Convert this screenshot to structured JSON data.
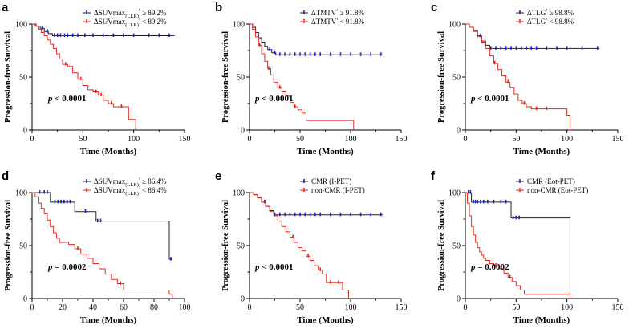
{
  "colors": {
    "blue": "#1f22c8",
    "red": "#e8281e",
    "axis": "#000000"
  },
  "chart_data": [
    {
      "panel": "a",
      "type": "line",
      "xlabel": "Time (Months)",
      "ylabel": "Progression-free Survival",
      "xlim": [
        0,
        150
      ],
      "ylim": [
        0,
        100
      ],
      "xticks": [
        "0",
        "50",
        "100",
        "150"
      ],
      "yticks": [
        "0",
        "50",
        "100"
      ],
      "pvalue": "< 0.0001",
      "legend": [
        "ΔSUVmax(LLR)¹ ≥ 89.2%",
        "ΔSUVmax(LLR)¹ < 89.2%"
      ],
      "series": [
        {
          "name": "ΔSUVmax(LLR)¹ ≥ 89.2%",
          "color": "blue",
          "steps": [
            [
              0,
              100
            ],
            [
              4,
              98
            ],
            [
              8,
              96
            ],
            [
              12,
              93
            ],
            [
              16,
              91
            ],
            [
              20,
              89
            ],
            [
              140,
              89
            ]
          ],
          "censors": [
            10,
            15,
            22,
            25,
            28,
            32,
            35,
            40,
            45,
            52,
            60,
            70,
            80,
            90,
            100,
            115,
            125,
            135
          ]
        },
        {
          "name": "ΔSUVmax(LLR)¹ < 89.2%",
          "color": "red",
          "steps": [
            [
              0,
              100
            ],
            [
              3,
              98
            ],
            [
              6,
              95
            ],
            [
              9,
              92
            ],
            [
              12,
              89
            ],
            [
              15,
              85
            ],
            [
              18,
              81
            ],
            [
              21,
              77
            ],
            [
              24,
              72
            ],
            [
              27,
              67
            ],
            [
              30,
              62
            ],
            [
              35,
              60
            ],
            [
              40,
              54
            ],
            [
              45,
              48
            ],
            [
              50,
              42
            ],
            [
              55,
              38
            ],
            [
              60,
              36
            ],
            [
              65,
              33
            ],
            [
              70,
              28
            ],
            [
              75,
              25
            ],
            [
              80,
              22
            ],
            [
              93,
              22
            ],
            [
              95,
              10
            ],
            [
              102,
              10
            ],
            [
              102,
              0
            ]
          ],
          "censors": [
            33,
            48,
            63,
            68,
            78,
            88
          ]
        }
      ]
    },
    {
      "panel": "b",
      "type": "line",
      "xlabel": "Time (Months)",
      "ylabel": "Progression-free Survival",
      "xlim": [
        0,
        150
      ],
      "ylim": [
        0,
        100
      ],
      "xticks": [
        "0",
        "50",
        "100",
        "150"
      ],
      "yticks": [
        "0",
        "50",
        "100"
      ],
      "pvalue": "< 0.0001",
      "legend": [
        "ΔTMTV¹ ≥ 91.8%",
        "ΔTMTV¹ < 91.8%"
      ],
      "series": [
        {
          "name": "ΔTMTV¹ ≥ 91.8%",
          "color": "blue",
          "steps": [
            [
              0,
              100
            ],
            [
              3,
              97
            ],
            [
              6,
              92
            ],
            [
              9,
              87
            ],
            [
              12,
              83
            ],
            [
              15,
              79
            ],
            [
              18,
              76
            ],
            [
              22,
              73
            ],
            [
              26,
              71
            ],
            [
              132,
              71
            ]
          ],
          "censors": [
            20,
            25,
            30,
            35,
            40,
            45,
            50,
            55,
            60,
            65,
            70,
            80,
            90,
            100,
            110,
            120,
            130
          ]
        },
        {
          "name": "ΔTMTV¹ < 91.8%",
          "color": "red",
          "steps": [
            [
              0,
              100
            ],
            [
              3,
              95
            ],
            [
              6,
              88
            ],
            [
              9,
              80
            ],
            [
              12,
              72
            ],
            [
              15,
              65
            ],
            [
              18,
              58
            ],
            [
              21,
              52
            ],
            [
              24,
              45
            ],
            [
              28,
              40
            ],
            [
              32,
              36
            ],
            [
              36,
              32
            ],
            [
              40,
              26
            ],
            [
              44,
              22
            ],
            [
              48,
              19
            ],
            [
              52,
              16
            ],
            [
              56,
              9
            ],
            [
              103,
              9
            ],
            [
              103,
              0
            ]
          ],
          "censors": [
            10,
            19,
            30,
            45
          ]
        }
      ]
    },
    {
      "panel": "c",
      "type": "line",
      "xlabel": "Time (Months)",
      "ylabel": "Progression-free Survival",
      "xlim": [
        0,
        150
      ],
      "ylim": [
        0,
        100
      ],
      "xticks": [
        "0",
        "50",
        "100",
        "150"
      ],
      "yticks": [
        "0",
        "50",
        "100"
      ],
      "pvalue": "< 0.0001",
      "legend": [
        "ΔTLG¹ ≥ 98.8%",
        "ΔTLG¹ < 98.8%"
      ],
      "series": [
        {
          "name": "ΔTLG¹ ≥ 98.8%",
          "color": "blue",
          "steps": [
            [
              0,
              100
            ],
            [
              4,
              97
            ],
            [
              8,
              94
            ],
            [
              12,
              89
            ],
            [
              16,
              84
            ],
            [
              20,
              80
            ],
            [
              24,
              77
            ],
            [
              132,
              77
            ]
          ],
          "censors": [
            15,
            25,
            30,
            35,
            40,
            45,
            50,
            55,
            60,
            65,
            70,
            80,
            90,
            100,
            115,
            130
          ]
        },
        {
          "name": "ΔTLG¹ < 98.8%",
          "color": "red",
          "steps": [
            [
              0,
              100
            ],
            [
              4,
              97
            ],
            [
              8,
              93
            ],
            [
              12,
              88
            ],
            [
              16,
              83
            ],
            [
              20,
              77
            ],
            [
              24,
              70
            ],
            [
              28,
              63
            ],
            [
              32,
              57
            ],
            [
              36,
              51
            ],
            [
              40,
              45
            ],
            [
              44,
              40
            ],
            [
              48,
              34
            ],
            [
              52,
              28
            ],
            [
              56,
              25
            ],
            [
              60,
              22
            ],
            [
              65,
              20
            ],
            [
              95,
              20
            ],
            [
              100,
              14
            ],
            [
              103,
              14
            ],
            [
              103,
              0
            ]
          ],
          "censors": [
            29,
            42,
            58,
            70,
            80
          ]
        }
      ]
    },
    {
      "panel": "d",
      "type": "line",
      "xlabel": "Time (Months)",
      "ylabel": "Progression-free Survival",
      "xlim": [
        0,
        100
      ],
      "ylim": [
        0,
        100
      ],
      "xticks": [
        "0",
        "20",
        "40",
        "60",
        "80",
        "100"
      ],
      "yticks": [
        "0",
        "50",
        "100"
      ],
      "pvalue": "= 0.0002",
      "legend": [
        "ΔSUVmax(LLR)² ≥ 86.4%",
        "ΔSUVmax(LLR)² < 86.4%"
      ],
      "series": [
        {
          "name": "ΔSUVmax(LLR)² ≥ 86.4%",
          "color": "blue",
          "steps": [
            [
              0,
              100
            ],
            [
              12,
              91
            ],
            [
              28,
              82
            ],
            [
              42,
              73
            ],
            [
              88,
              73
            ],
            [
              90,
              37
            ],
            [
              92,
              37
            ]
          ],
          "censors": [
            5,
            8,
            10,
            15,
            17,
            19,
            21,
            23,
            25,
            35,
            43,
            45,
            91
          ]
        },
        {
          "name": "ΔSUVmax(LLR)² < 86.4%",
          "color": "red",
          "steps": [
            [
              0,
              100
            ],
            [
              2,
              96
            ],
            [
              4,
              90
            ],
            [
              6,
              85
            ],
            [
              8,
              80
            ],
            [
              10,
              74
            ],
            [
              12,
              68
            ],
            [
              14,
              62
            ],
            [
              16,
              57
            ],
            [
              18,
              53
            ],
            [
              24,
              51
            ],
            [
              28,
              47
            ],
            [
              32,
              42
            ],
            [
              36,
              38
            ],
            [
              40,
              33
            ],
            [
              44,
              28
            ],
            [
              48,
              23
            ],
            [
              52,
              18
            ],
            [
              56,
              14
            ],
            [
              60,
              8
            ],
            [
              88,
              8
            ],
            [
              90,
              4
            ],
            [
              92,
              0
            ]
          ],
          "censors": [
            30,
            58
          ]
        }
      ]
    },
    {
      "panel": "e",
      "type": "line",
      "xlabel": "Time (Months)",
      "ylabel": "Progression-free Survival",
      "xlim": [
        0,
        150
      ],
      "ylim": [
        0,
        100
      ],
      "xticks": [
        "0",
        "50",
        "100",
        "150"
      ],
      "yticks": [
        "0",
        "50",
        "100"
      ],
      "pvalue": "< 0.0001",
      "legend": [
        "CMR (I-PET)",
        "non-CMR (I-PET)"
      ],
      "series": [
        {
          "name": "CMR (I-PET)",
          "color": "blue",
          "steps": [
            [
              0,
              100
            ],
            [
              4,
              98
            ],
            [
              8,
              95
            ],
            [
              12,
              91
            ],
            [
              16,
              87
            ],
            [
              20,
              83
            ],
            [
              24,
              79
            ],
            [
              132,
              79
            ]
          ],
          "censors": [
            15,
            25,
            30,
            35,
            40,
            45,
            50,
            55,
            60,
            65,
            70,
            80,
            90,
            100,
            110,
            120,
            130
          ]
        },
        {
          "name": "non-CMR (I-PET)",
          "color": "red",
          "steps": [
            [
              0,
              100
            ],
            [
              4,
              98
            ],
            [
              8,
              95
            ],
            [
              12,
              91
            ],
            [
              16,
              87
            ],
            [
              20,
              82
            ],
            [
              24,
              78
            ],
            [
              28,
              73
            ],
            [
              32,
              68
            ],
            [
              36,
              63
            ],
            [
              40,
              58
            ],
            [
              44,
              53
            ],
            [
              48,
              48
            ],
            [
              52,
              45
            ],
            [
              56,
              40
            ],
            [
              60,
              36
            ],
            [
              64,
              31
            ],
            [
              68,
              27
            ],
            [
              72,
              23
            ],
            [
              76,
              15
            ],
            [
              90,
              15
            ],
            [
              92,
              8
            ],
            [
              97,
              8
            ],
            [
              98,
              0
            ]
          ],
          "censors": [
            43,
            58,
            70,
            80,
            88
          ]
        }
      ]
    },
    {
      "panel": "f",
      "type": "line",
      "xlabel": "Time (Months)",
      "ylabel": "Progression-free Survival",
      "xlim": [
        0,
        150
      ],
      "ylim": [
        0,
        100
      ],
      "xticks": [
        "0",
        "50",
        "100",
        "150"
      ],
      "yticks": [
        "0",
        "50",
        "100"
      ],
      "pvalue": "= 0.0002",
      "legend": [
        "CMR (Eot-PET)",
        "non-CMR (Eot-PET)"
      ],
      "series": [
        {
          "name": "CMR (Eot-PET)",
          "color": "blue",
          "steps": [
            [
              0,
              100
            ],
            [
              6,
              91
            ],
            [
              43,
              91
            ],
            [
              45,
              76
            ],
            [
              100,
              76
            ],
            [
              103,
              0
            ]
          ],
          "censors": [
            3,
            5,
            8,
            10,
            12,
            15,
            18,
            22,
            28,
            35,
            40,
            47,
            50,
            53
          ]
        },
        {
          "name": "non-CMR (Eot-PET)",
          "color": "red",
          "steps": [
            [
              0,
              100
            ],
            [
              2,
              90
            ],
            [
              4,
              78
            ],
            [
              6,
              68
            ],
            [
              8,
              60
            ],
            [
              10,
              53
            ],
            [
              12,
              48
            ],
            [
              14,
              44
            ],
            [
              16,
              41
            ],
            [
              18,
              38
            ],
            [
              20,
              36
            ],
            [
              24,
              33
            ],
            [
              28,
              31
            ],
            [
              34,
              28
            ],
            [
              38,
              24
            ],
            [
              42,
              20
            ],
            [
              46,
              16
            ],
            [
              50,
              12
            ],
            [
              54,
              8
            ],
            [
              58,
              4
            ],
            [
              103,
              4
            ],
            [
              103,
              0
            ]
          ],
          "censors": [
            30,
            44
          ]
        }
      ]
    }
  ]
}
